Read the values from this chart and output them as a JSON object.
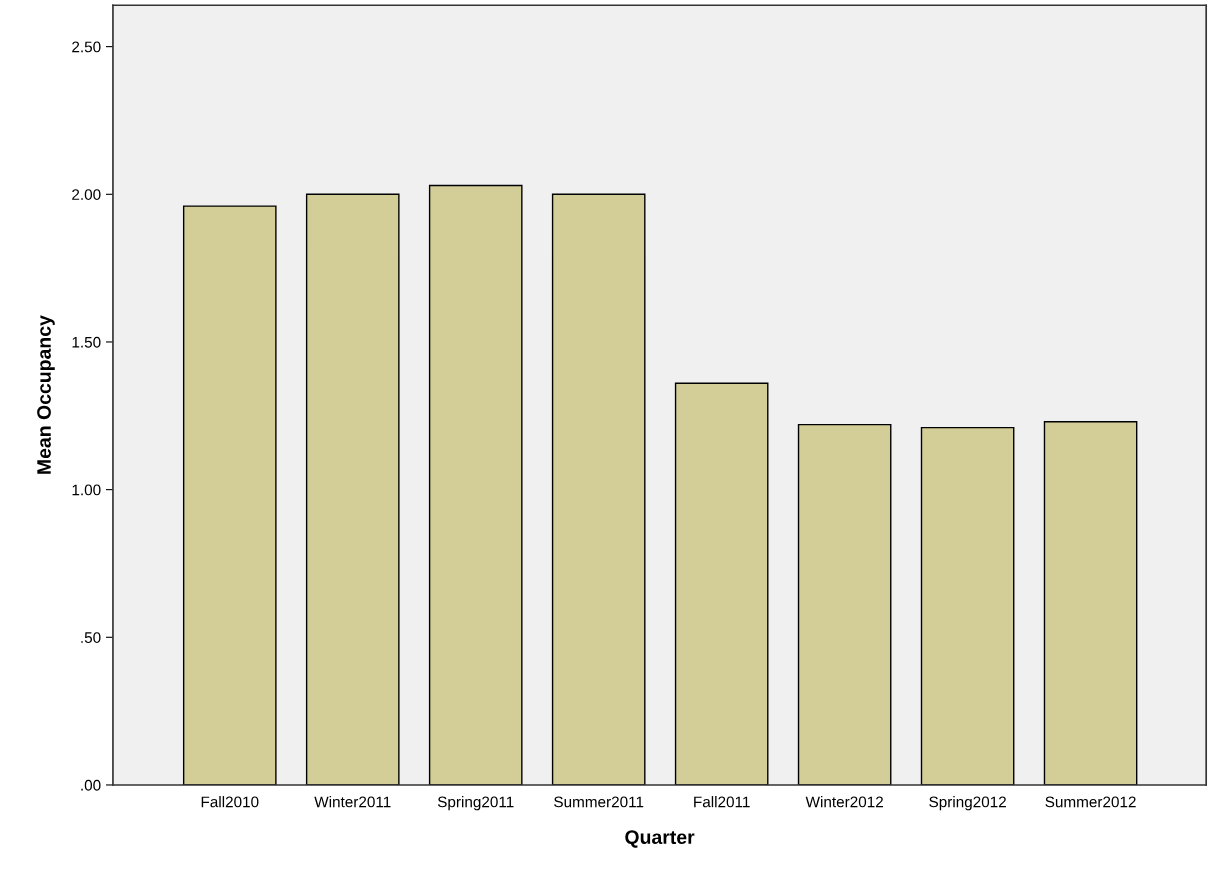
{
  "chart_data": {
    "type": "bar",
    "xlabel": "Quarter",
    "ylabel": "Mean Occupancy",
    "categories": [
      "Fall2010",
      "Winter2011",
      "Spring2011",
      "Summer2011",
      "Fall2011",
      "Winter2012",
      "Spring2012",
      "Summer2012"
    ],
    "values": [
      1.96,
      2.0,
      2.03,
      2.0,
      1.36,
      1.22,
      1.21,
      1.23
    ],
    "color": "#d3ce97",
    "ylim": [
      0,
      2.64
    ],
    "yticks": [
      {
        "value": 0,
        "label": ".00"
      },
      {
        "value": 0.5,
        "label": ".50"
      },
      {
        "value": 1.0,
        "label": "1.00"
      },
      {
        "value": 1.5,
        "label": "1.50"
      },
      {
        "value": 2.0,
        "label": "2.00"
      },
      {
        "value": 2.5,
        "label": "2.50"
      }
    ],
    "grid": false
  }
}
